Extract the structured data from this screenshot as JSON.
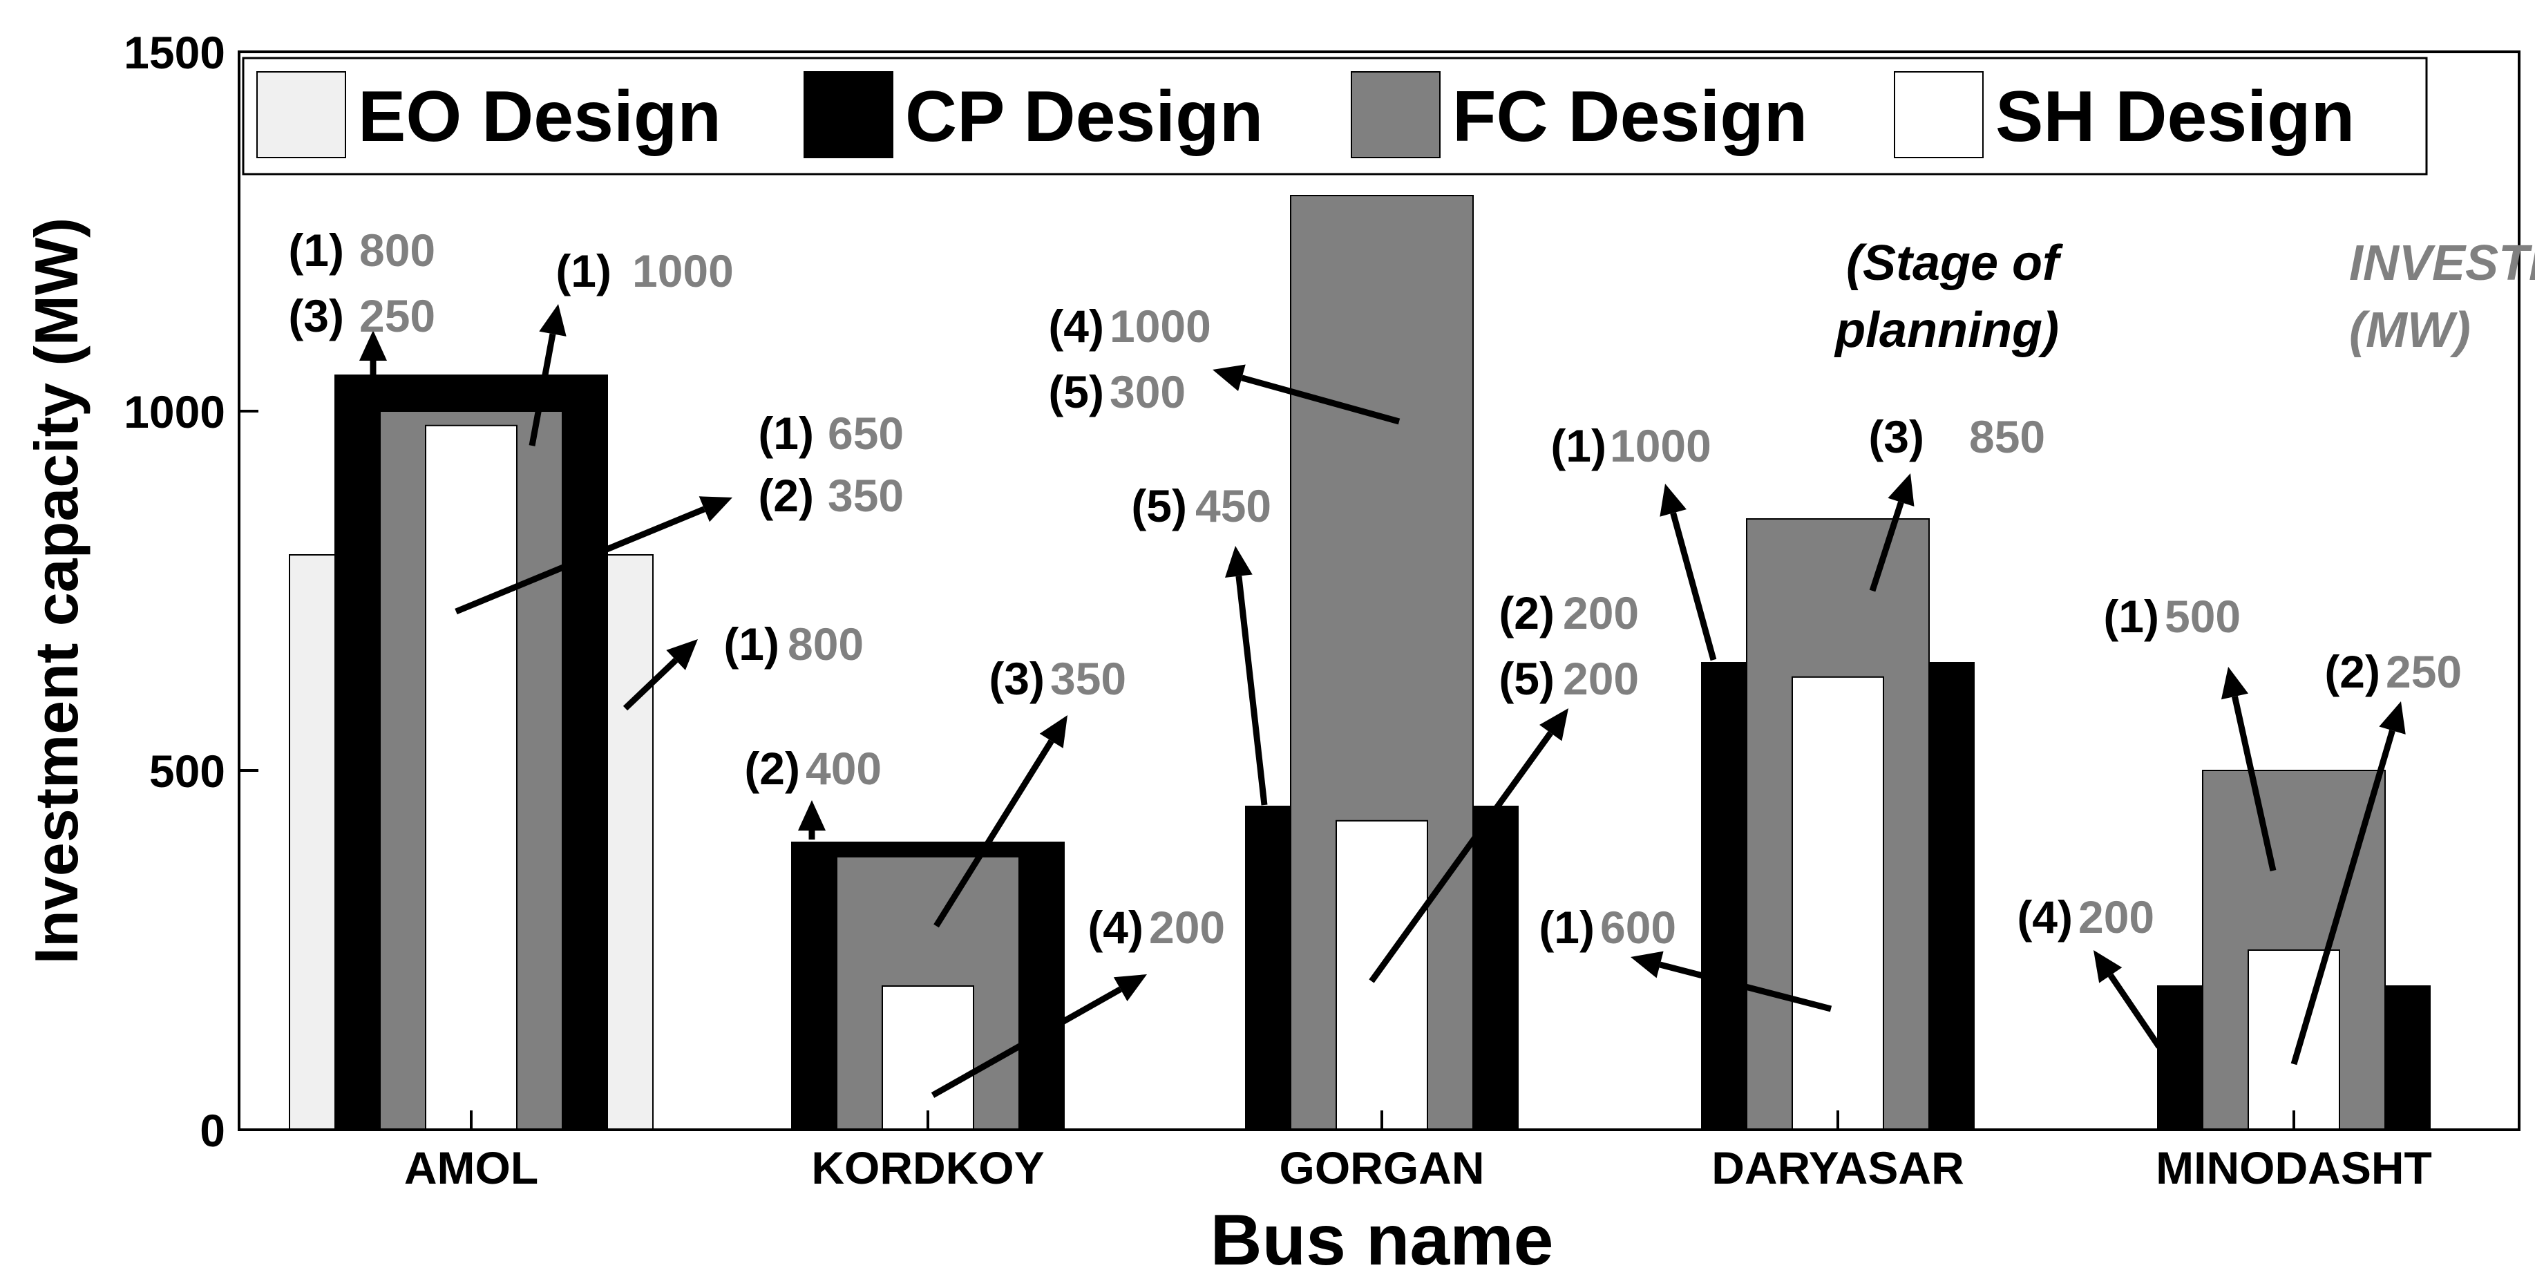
{
  "chart_data": {
    "type": "bar",
    "xlabel": "Bus name",
    "ylabel": "Investment capacity (MW)",
    "ylim": [
      0,
      1500
    ],
    "yticks": [
      0,
      500,
      1000,
      1500
    ],
    "categories": [
      "AMOL",
      "KORDKOY",
      "GORGAN",
      "DARYASAR",
      "MINODASHT"
    ],
    "series": [
      {
        "name": "EO Design",
        "color": "#f0f0f0",
        "values": [
          800,
          0,
          0,
          0,
          0
        ]
      },
      {
        "name": "CP Design",
        "color": "#000000",
        "values": [
          1050,
          400,
          450,
          650,
          200
        ]
      },
      {
        "name": "FC Design",
        "color": "#808080",
        "values": [
          1000,
          380,
          1300,
          850,
          500
        ]
      },
      {
        "name": "SH Design",
        "color": "#ffffff",
        "values": [
          980,
          200,
          430,
          630,
          250
        ]
      }
    ],
    "legend_position": "top",
    "grid": false,
    "key": {
      "stage_label_line1": "(Stage of",
      "stage_label_line2": "planning)",
      "value_label_line1": "INVESTMENT",
      "value_label_line2": "(MW)",
      "stage_color": "#000000",
      "value_color": "#808080"
    },
    "annotations": [
      {
        "lines": [
          {
            "stage": "(1)",
            "value": "800"
          },
          {
            "stage": "(3)",
            "value": "250"
          }
        ]
      },
      {
        "lines": [
          {
            "stage": "(1)",
            "value": "1000"
          }
        ]
      },
      {
        "lines": [
          {
            "stage": "(1)",
            "value": "650"
          },
          {
            "stage": "(2)",
            "value": "350"
          }
        ]
      },
      {
        "lines": [
          {
            "stage": "(1)",
            "value": "800"
          }
        ]
      },
      {
        "lines": [
          {
            "stage": "(2)",
            "value": "400"
          }
        ]
      },
      {
        "lines": [
          {
            "stage": "(3)",
            "value": "350"
          }
        ]
      },
      {
        "lines": [
          {
            "stage": "(4)",
            "value": "200"
          }
        ]
      },
      {
        "lines": [
          {
            "stage": "(4)",
            "value": "1000"
          },
          {
            "stage": "(5)",
            "value": "300"
          }
        ]
      },
      {
        "lines": [
          {
            "stage": "(5)",
            "value": "450"
          }
        ]
      },
      {
        "lines": [
          {
            "stage": "(2)",
            "value": "200"
          },
          {
            "stage": "(5)",
            "value": "200"
          }
        ]
      },
      {
        "lines": [
          {
            "stage": "(1)",
            "value": "1000"
          }
        ]
      },
      {
        "lines": [
          {
            "stage": "(3)",
            "value": "850"
          }
        ]
      },
      {
        "lines": [
          {
            "stage": "(1)",
            "value": "600"
          }
        ]
      },
      {
        "lines": [
          {
            "stage": "(1)",
            "value": "500"
          }
        ]
      },
      {
        "lines": [
          {
            "stage": "(2)",
            "value": "250"
          }
        ]
      },
      {
        "lines": [
          {
            "stage": "(4)",
            "value": "200"
          }
        ]
      }
    ]
  }
}
